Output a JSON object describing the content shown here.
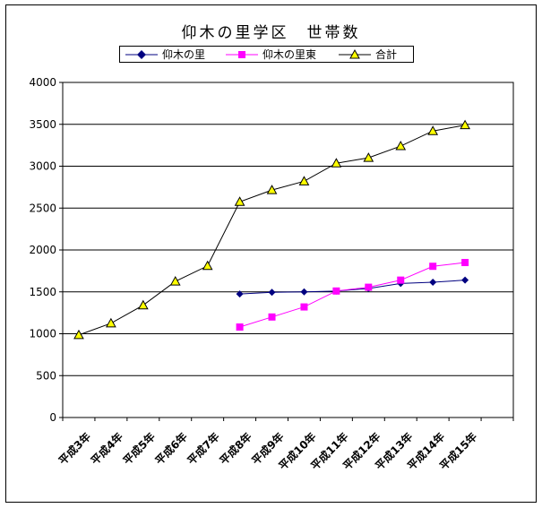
{
  "chart_data": {
    "type": "line",
    "title": "仰木の里学区　世帯数",
    "xlabel": "",
    "ylabel": "",
    "categories": [
      "平成3年",
      "平成4年",
      "平成5年",
      "平成6年",
      "平成7年",
      "平成8年",
      "平成9年",
      "平成10年",
      "平成11年",
      "平成12年",
      "平成13年",
      "平成14年",
      "平成15年"
    ],
    "ylim": [
      0,
      4000
    ],
    "yticks": [
      0,
      500,
      1000,
      1500,
      2000,
      2500,
      3000,
      3500,
      4000
    ],
    "grid": true,
    "legend_position": "top",
    "series": [
      {
        "name": "仰木の里",
        "color": "#000080",
        "marker": "diamond",
        "values": [
          null,
          null,
          null,
          null,
          null,
          1475,
          1495,
          1500,
          1510,
          1540,
          1600,
          1615,
          1640
        ]
      },
      {
        "name": "仰木の里東",
        "color": "#ff00ff",
        "marker": "square",
        "values": [
          null,
          null,
          null,
          null,
          null,
          1080,
          1200,
          1320,
          1510,
          1555,
          1640,
          1805,
          1850
        ]
      },
      {
        "name": "合計",
        "color": "#000000",
        "marker": "triangle",
        "marker_fill": "#ffff00",
        "values": [
          985,
          1125,
          1340,
          1625,
          1810,
          2575,
          2715,
          2820,
          3035,
          3100,
          3240,
          3420,
          3490
        ]
      }
    ]
  }
}
